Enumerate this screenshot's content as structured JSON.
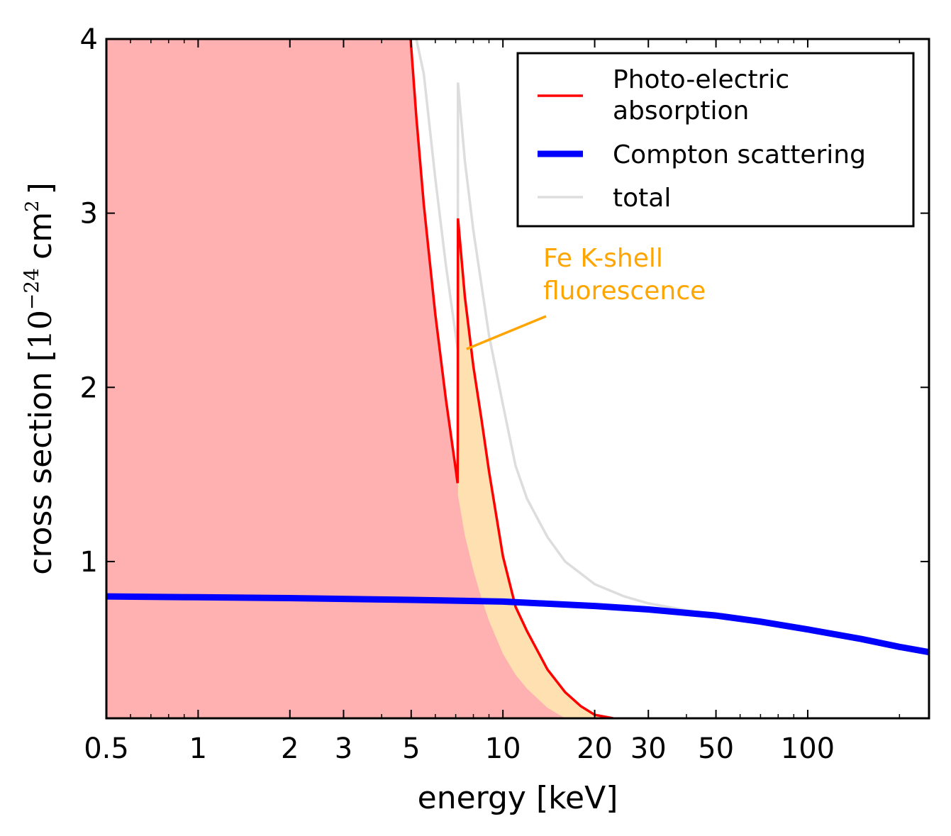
{
  "chart_data": {
    "type": "line",
    "xlabel": "energy [keV]",
    "ylabel_prefix": "cross section [",
    "ylabel_math": "10",
    "ylabel_exp": "−24",
    "ylabel_unit": "cm",
    "ylabel_unit_exp": "2",
    "ylabel_suffix": "]",
    "xscale": "log",
    "xlim": [
      0.5,
      250
    ],
    "ylim": [
      0.1,
      4
    ],
    "xticks": [
      {
        "value": 0.5,
        "label": "0.5"
      },
      {
        "value": 1,
        "label": "1"
      },
      {
        "value": 2,
        "label": "2"
      },
      {
        "value": 3,
        "label": "3"
      },
      {
        "value": 5,
        "label": "5"
      },
      {
        "value": 10,
        "label": "10"
      },
      {
        "value": 20,
        "label": "20"
      },
      {
        "value": 30,
        "label": "30"
      },
      {
        "value": 50,
        "label": "50"
      },
      {
        "value": 100,
        "label": "100"
      }
    ],
    "yticks": [
      {
        "value": 1,
        "label": "1"
      },
      {
        "value": 2,
        "label": "2"
      },
      {
        "value": 3,
        "label": "3"
      },
      {
        "value": 4,
        "label": "4"
      }
    ],
    "grid": false,
    "legend_position": "top-right",
    "series": [
      {
        "name": "Photo-electric absorption",
        "color": "#FF0000",
        "x": [
          4.98,
          5.2,
          5.5,
          6.0,
          6.5,
          7.0,
          7.1,
          7.11,
          7.12,
          7.5,
          8.0,
          8.5,
          9.0,
          10.0,
          11.0,
          12.0,
          14.0,
          16.0,
          18.0,
          20.0,
          23.0
        ],
        "y": [
          4.0,
          3.55,
          3.05,
          2.42,
          1.93,
          1.53,
          1.45,
          1.7,
          2.97,
          2.52,
          2.12,
          1.82,
          1.52,
          1.03,
          0.74,
          0.6,
          0.38,
          0.25,
          0.17,
          0.12,
          0.1
        ]
      },
      {
        "name": "Compton scattering",
        "color": "#0000FF",
        "x": [
          0.5,
          1,
          2,
          5,
          10,
          20,
          30,
          50,
          70,
          100,
          150,
          200,
          250
        ],
        "y": [
          0.8,
          0.795,
          0.79,
          0.78,
          0.77,
          0.745,
          0.725,
          0.69,
          0.655,
          0.61,
          0.555,
          0.51,
          0.48
        ]
      },
      {
        "name": "total",
        "color": "#DDDDDD",
        "x": [
          5.2,
          5.5,
          6.0,
          6.5,
          7.0,
          7.1,
          7.11,
          7.12,
          7.5,
          8.0,
          9.0,
          10.0,
          11.0,
          12.0,
          14.0,
          16.0,
          20.0,
          25.0,
          30.0,
          40.0,
          50.0
        ],
        "y": [
          4.0,
          3.8,
          3.2,
          2.7,
          2.3,
          2.22,
          2.5,
          3.75,
          3.3,
          2.9,
          2.3,
          1.9,
          1.55,
          1.36,
          1.14,
          1.0,
          0.87,
          0.8,
          0.76,
          0.72,
          0.69
        ]
      }
    ],
    "fluorescence_region": {
      "color": "#FFE0B0",
      "x": [
        7.12,
        7.5,
        8.0,
        8.5,
        9.0,
        10.0,
        11.0,
        12.0,
        14.0,
        16.0
      ],
      "y_lower": [
        1.38,
        1.15,
        0.95,
        0.79,
        0.66,
        0.47,
        0.35,
        0.27,
        0.16,
        0.1
      ]
    },
    "absorption_fill_color": "#FFB0B0",
    "annotation": {
      "line1": "Fe K-shell",
      "line2": "fluorescence",
      "color": "#FFA500",
      "point_x": 7.6,
      "point_y": 2.22
    },
    "legend": [
      {
        "line1": "Photo-electric",
        "line2": "absorption",
        "color": "#FF0000"
      },
      {
        "line1": "Compton scattering",
        "line2": "",
        "color": "#0000FF"
      },
      {
        "line1": "total",
        "line2": "",
        "color": "#DDDDDD"
      }
    ]
  }
}
